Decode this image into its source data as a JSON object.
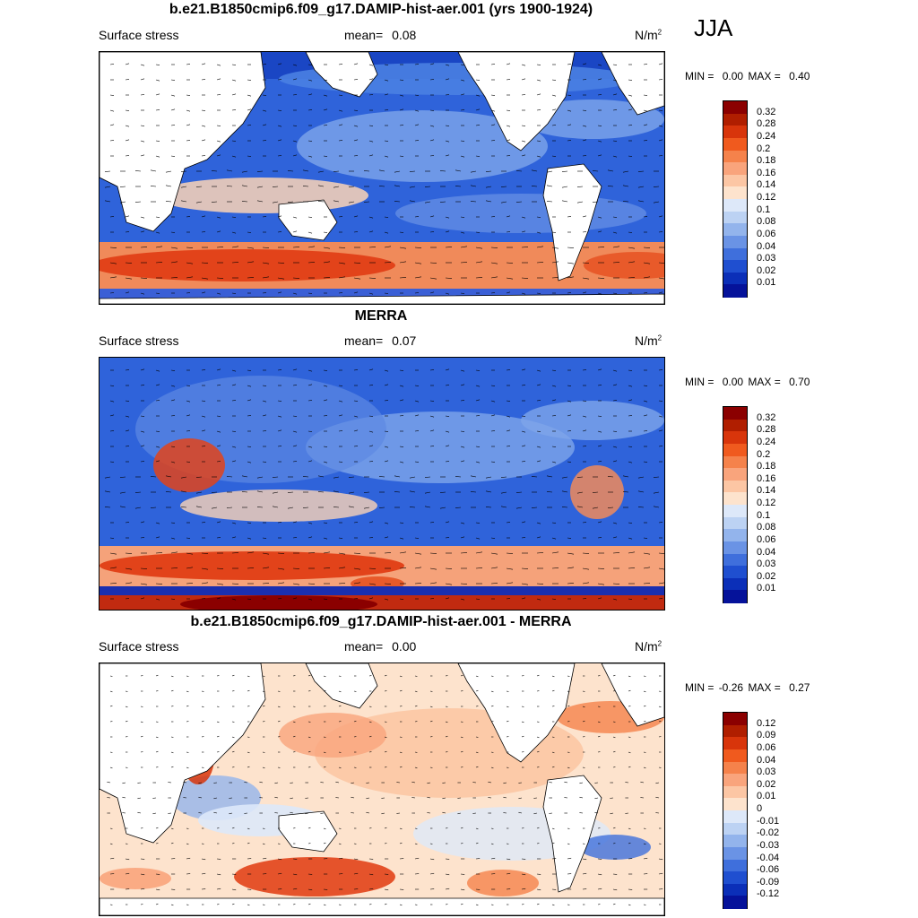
{
  "season": "JJA",
  "panels": [
    {
      "title": "b.e21.B1850cmip6.f09_g17.DAMIP-hist-aer.001 (yrs 1900-1924)",
      "variable": "Surface stress",
      "mean_label": "mean=",
      "mean_value": "0.08",
      "units": "N/m",
      "units_sup": "2",
      "min_label": "MIN =",
      "min_value": "0.00",
      "max_label": "MAX =",
      "max_value": "0.40",
      "colorbar_labels": [
        "0.32",
        "0.28",
        "0.24",
        "0.2",
        "0.18",
        "0.16",
        "0.14",
        "0.12",
        "0.1",
        "0.08",
        "0.06",
        "0.04",
        "0.03",
        "0.02",
        "0.01"
      ],
      "colorbar_colors": [
        "#8b0000",
        "#b01e00",
        "#d8350b",
        "#f05a1e",
        "#f5824b",
        "#f9a47c",
        "#fcc6a4",
        "#fde3cd",
        "#dde8f9",
        "#bcd2f3",
        "#93b4ec",
        "#6a93e5",
        "#3f6fdc",
        "#1f4fd0",
        "#0b2fb8",
        "#05129a"
      ]
    },
    {
      "title": "MERRA",
      "variable": "Surface stress",
      "mean_label": "mean=",
      "mean_value": "0.07",
      "units": "N/m",
      "units_sup": "2",
      "min_label": "MIN =",
      "min_value": "0.00",
      "max_label": "MAX =",
      "max_value": "0.70",
      "colorbar_labels": [
        "0.32",
        "0.28",
        "0.24",
        "0.2",
        "0.18",
        "0.16",
        "0.14",
        "0.12",
        "0.1",
        "0.08",
        "0.06",
        "0.04",
        "0.03",
        "0.02",
        "0.01"
      ],
      "colorbar_colors": [
        "#8b0000",
        "#b01e00",
        "#d8350b",
        "#f05a1e",
        "#f5824b",
        "#f9a47c",
        "#fcc6a4",
        "#fde3cd",
        "#dde8f9",
        "#bcd2f3",
        "#93b4ec",
        "#6a93e5",
        "#3f6fdc",
        "#1f4fd0",
        "#0b2fb8",
        "#05129a"
      ]
    },
    {
      "title": "b.e21.B1850cmip6.f09_g17.DAMIP-hist-aer.001 - MERRA",
      "variable": "Surface stress",
      "mean_label": "mean=",
      "mean_value": "0.00",
      "units": "N/m",
      "units_sup": "2",
      "min_label": "MIN =",
      "min_value": "-0.26",
      "max_label": "MAX =",
      "max_value": "0.27",
      "colorbar_labels": [
        "0.12",
        "0.09",
        "0.06",
        "0.04",
        "0.03",
        "0.02",
        "0.01",
        "0",
        "-0.01",
        "-0.02",
        "-0.03",
        "-0.04",
        "-0.06",
        "-0.09",
        "-0.12"
      ],
      "colorbar_colors": [
        "#8b0000",
        "#b01e00",
        "#d8350b",
        "#f05a1e",
        "#f5824b",
        "#f9a47c",
        "#fcc6a4",
        "#fde3cd",
        "#dde8f9",
        "#bcd2f3",
        "#93b4ec",
        "#6a93e5",
        "#3f6fdc",
        "#1f4fd0",
        "#0b2fb8",
        "#05129a"
      ]
    }
  ]
}
